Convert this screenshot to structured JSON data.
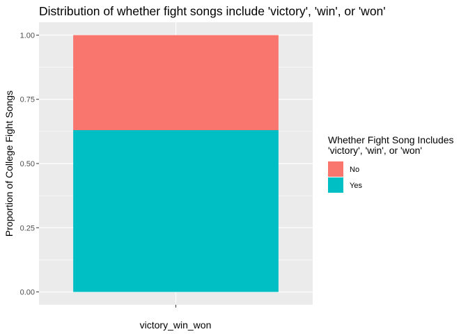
{
  "chart_data": {
    "type": "bar",
    "stacked": true,
    "title": "Distribution of whether fight songs include 'victory', 'win', or 'won'",
    "xlabel": "victory_win_won",
    "ylabel": "Proportion of College Fight Songs",
    "categories": [
      ""
    ],
    "series": [
      {
        "name": "No",
        "values": [
          0.37
        ],
        "color": "#F8766D"
      },
      {
        "name": "Yes",
        "values": [
          0.63
        ],
        "color": "#00BFC4"
      }
    ],
    "ylim": [
      -0.05,
      1.05
    ],
    "yticks": [
      0.0,
      0.25,
      0.5,
      0.75,
      1.0
    ],
    "ytick_labels": [
      "0.00",
      "0.25",
      "0.50",
      "0.75",
      "1.00"
    ],
    "grid": true,
    "legend": {
      "title_lines": [
        "Whether Fight Song Includes",
        "'victory', 'win', or 'won'"
      ],
      "placement": "right"
    },
    "colors": {
      "panel_background": "#EBEBEB",
      "grid": "#FFFFFF",
      "axis_ticks": "#333333"
    }
  }
}
